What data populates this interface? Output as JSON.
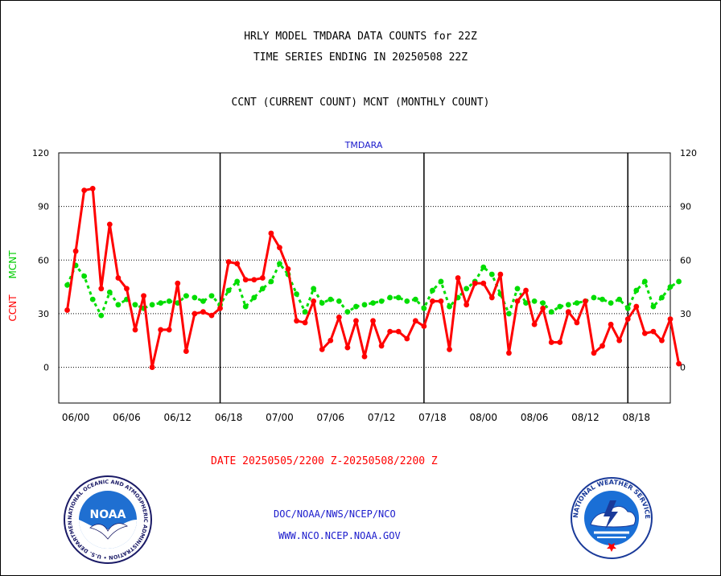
{
  "header": {
    "title_line1": "HRLY MODEL TMDARA DATA COUNTS for 22Z",
    "title_line2": "TIME SERIES ENDING IN 20250508 22Z",
    "subtitle": "CCNT (CURRENT COUNT) MCNT (MONTHLY COUNT)"
  },
  "footer": {
    "date_range": "DATE 20250505/2200 Z-20250508/2200 Z",
    "org_line": "DOC/NOAA/NWS/NCEP/NCO",
    "url_line": "WWW.NCO.NCEP.NOAA.GOV"
  },
  "logos": {
    "left": {
      "icon": "noaa-logo-icon",
      "text": "NOAA",
      "ring_text": "NATIONAL OCEANIC AND ATMOSPHERIC ADMINISTRATION • U.S. DEPARTMENT OF COMMERCE"
    },
    "right": {
      "icon": "nws-logo-icon",
      "ring_text": "NATIONAL WEATHER SERVICE"
    }
  },
  "colors": {
    "ccnt": "#ff0000",
    "mcnt": "#00dd00",
    "label_blue": "#1a1acc"
  },
  "chart_data": {
    "type": "line",
    "title": "TMDARA",
    "ylabel_series": [
      "CCNT",
      "MCNT"
    ],
    "ylim": [
      -20,
      120
    ],
    "yticks": [
      0,
      30,
      60,
      90,
      120
    ],
    "xlim": [
      -1,
      71
    ],
    "xtick_positions": [
      1,
      7,
      13,
      19,
      25,
      31,
      37,
      43,
      49,
      55,
      61,
      67
    ],
    "xtick_labels": [
      "06/00",
      "06/06",
      "06/12",
      "06/18",
      "07/00",
      "07/06",
      "07/12",
      "07/18",
      "08/00",
      "08/06",
      "08/12",
      "08/18"
    ],
    "day_boundaries": [
      18,
      42,
      66
    ],
    "gridlines_y": [
      0,
      30,
      60,
      90
    ],
    "series": [
      {
        "name": "CCNT",
        "values": [
          32,
          65,
          99,
          100,
          44,
          80,
          50,
          44,
          21,
          40,
          0,
          21,
          21,
          47,
          9,
          30,
          31,
          29,
          33,
          59,
          58,
          49,
          49,
          50,
          75,
          67,
          55,
          26,
          25,
          37,
          10,
          15,
          28,
          11,
          26,
          6,
          26,
          12,
          20,
          20,
          16,
          26,
          23,
          37,
          37,
          10,
          50,
          35,
          47,
          47,
          39,
          52,
          8,
          37,
          43,
          24,
          33,
          14,
          14,
          31,
          25,
          37,
          8,
          12,
          24,
          15,
          27,
          34,
          19,
          20,
          15,
          27,
          2
        ]
      },
      {
        "name": "MCNT",
        "values": [
          46,
          57,
          51,
          38,
          29,
          42,
          35,
          38,
          35,
          33,
          35,
          36,
          37,
          36,
          40,
          39,
          37,
          40,
          35,
          43,
          48,
          34,
          39,
          44,
          48,
          58,
          52,
          41,
          31,
          44,
          36,
          38,
          37,
          31,
          34,
          35,
          36,
          37,
          39,
          39,
          37,
          38,
          33,
          43,
          48,
          34,
          39,
          44,
          48,
          56,
          52,
          41,
          30,
          44,
          36,
          37,
          36,
          31,
          34,
          35,
          36,
          37,
          39,
          38,
          36,
          38,
          33,
          43,
          48,
          34,
          39,
          45,
          48
        ]
      }
    ]
  }
}
